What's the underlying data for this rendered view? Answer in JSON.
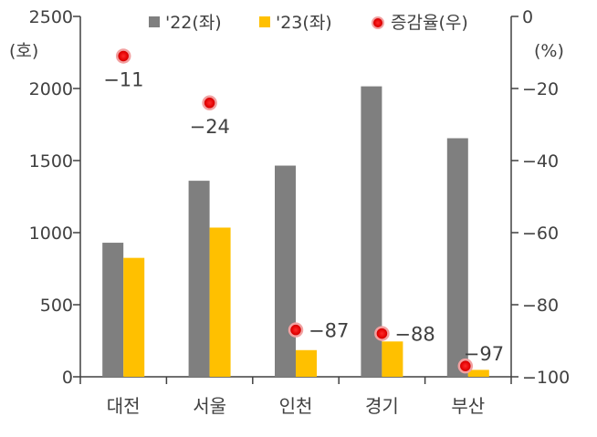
{
  "chart_data": {
    "type": "bar",
    "categories": [
      "대전",
      "서울",
      "인천",
      "경기",
      "부산"
    ],
    "series": [
      {
        "name": "'22(좌)",
        "axis": "left",
        "kind": "bar",
        "color": "#7f7f7f",
        "values": [
          930,
          1360,
          1465,
          2015,
          1655
        ]
      },
      {
        "name": "'23(좌)",
        "axis": "left",
        "kind": "bar",
        "color": "#ffc000",
        "values": [
          825,
          1035,
          185,
          245,
          48
        ]
      },
      {
        "name": "증감율(우)",
        "axis": "right",
        "kind": "scatter",
        "color": "#ff0000",
        "values": [
          -11,
          -24,
          -87,
          -88,
          -97
        ]
      }
    ],
    "point_labels": [
      "−11",
      "−24",
      "−87",
      "−88",
      "−97"
    ],
    "y_left": {
      "label": "(호)",
      "ylim": [
        0,
        2500
      ],
      "ticks": [
        "0",
        "500",
        "1000",
        "1500",
        "2000",
        "2500"
      ]
    },
    "y_right": {
      "label": "(%)",
      "ylim": [
        -100,
        0
      ],
      "ticks": [
        "−100",
        "−80",
        "−60",
        "−40",
        "−20",
        "0"
      ]
    },
    "grid": false,
    "legend_position": "top"
  }
}
